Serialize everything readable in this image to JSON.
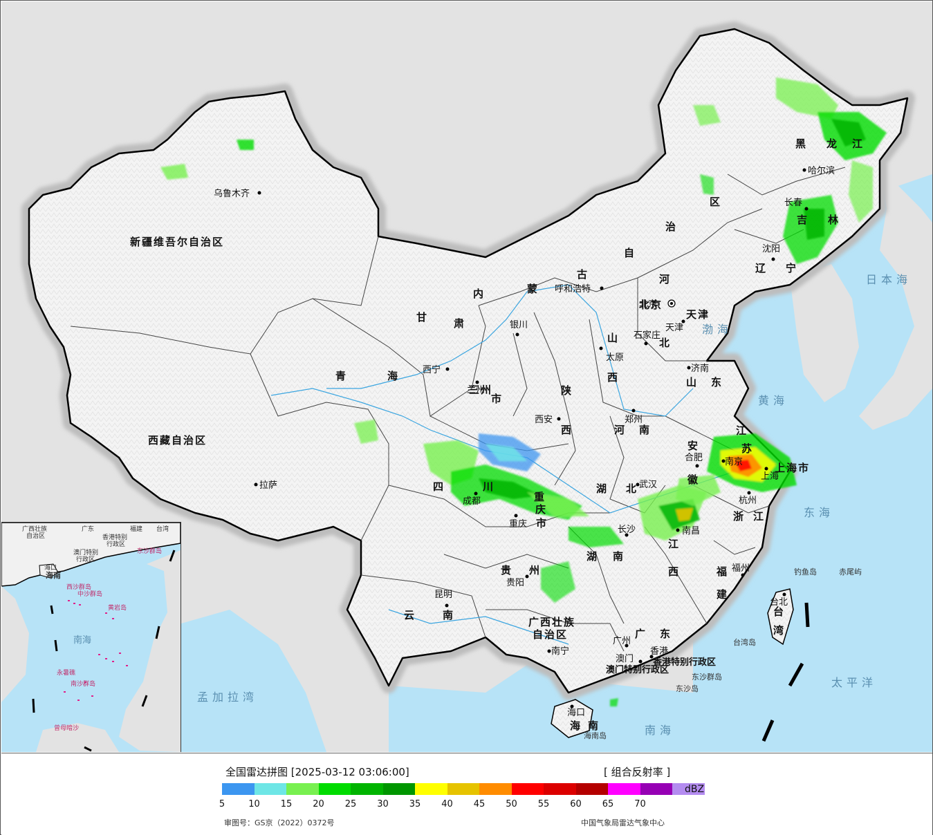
{
  "title": "全国雷达拼图 [2025-03-12 03:06:00]",
  "product": "[ 组合反射率 ]",
  "unit": "dBZ",
  "review_number": "审图号：GS京（2022）0372号",
  "source": "中国气象局雷达气象中心",
  "legend": {
    "colors": [
      "#3c96f0",
      "#6ee6e6",
      "#78f050",
      "#00dc00",
      "#00b400",
      "#009600",
      "#ffff00",
      "#e6c300",
      "#ff8c00",
      "#ff0000",
      "#dc0000",
      "#b40000",
      "#ff00ff",
      "#9600b4",
      "#b48cf0"
    ],
    "ticks": [
      "5",
      "10",
      "15",
      "20",
      "25",
      "30",
      "35",
      "40",
      "45",
      "50",
      "55",
      "60",
      "65",
      "70"
    ]
  },
  "provinces": [
    {
      "name": "新疆维吾尔自治区"
    },
    {
      "name": "西藏自治区"
    },
    {
      "name": "青"
    },
    {
      "name": "海"
    },
    {
      "name": "甘"
    },
    {
      "name": "肃"
    },
    {
      "name": "内"
    },
    {
      "name": "蒙"
    },
    {
      "name": "古"
    },
    {
      "name": "自"
    },
    {
      "name": "治"
    },
    {
      "name": "区"
    },
    {
      "name": "黑"
    },
    {
      "name": "龙"
    },
    {
      "name": "江"
    },
    {
      "name": "吉"
    },
    {
      "name": "林"
    },
    {
      "name": "辽"
    },
    {
      "name": "宁"
    },
    {
      "name": "河"
    },
    {
      "name": "北"
    },
    {
      "name": "山"
    },
    {
      "name": "西"
    },
    {
      "name": "山"
    },
    {
      "name": "东"
    },
    {
      "name": "陕"
    },
    {
      "name": "西"
    },
    {
      "name": "河"
    },
    {
      "name": "南"
    },
    {
      "name": "四"
    },
    {
      "name": "川"
    },
    {
      "name": "湖"
    },
    {
      "name": "北"
    },
    {
      "name": "安"
    },
    {
      "name": "徽"
    },
    {
      "name": "江"
    },
    {
      "name": "苏"
    },
    {
      "name": "浙"
    },
    {
      "name": "江"
    },
    {
      "name": "贵"
    },
    {
      "name": "州"
    },
    {
      "name": "云"
    },
    {
      "name": "南"
    },
    {
      "name": "湖"
    },
    {
      "name": "南"
    },
    {
      "name": "江"
    },
    {
      "name": "西"
    },
    {
      "name": "福"
    },
    {
      "name": "建"
    },
    {
      "name": "广西壮族"
    },
    {
      "name": "自治区"
    },
    {
      "name": "广"
    },
    {
      "name": "东"
    },
    {
      "name": "海"
    },
    {
      "name": "南"
    },
    {
      "name": "台"
    },
    {
      "name": "湾"
    },
    {
      "name": "上海市"
    },
    {
      "name": "北京"
    },
    {
      "name": "天津"
    },
    {
      "name": "重"
    },
    {
      "name": "庆"
    },
    {
      "name": "市"
    },
    {
      "name": "三州"
    },
    {
      "name": "市"
    }
  ],
  "cities": [
    {
      "name": "乌鲁木齐"
    },
    {
      "name": "拉萨"
    },
    {
      "name": "西宁"
    },
    {
      "name": "兰州"
    },
    {
      "name": "银川"
    },
    {
      "name": "呼和浩特"
    },
    {
      "name": "北京"
    },
    {
      "name": "天津"
    },
    {
      "name": "石家庄"
    },
    {
      "name": "太原"
    },
    {
      "name": "济南"
    },
    {
      "name": "郑州"
    },
    {
      "name": "西安"
    },
    {
      "name": "成都"
    },
    {
      "name": "重庆"
    },
    {
      "name": "武汉"
    },
    {
      "name": "合肥"
    },
    {
      "name": "南京"
    },
    {
      "name": "上海"
    },
    {
      "name": "杭州"
    },
    {
      "name": "南昌"
    },
    {
      "name": "长沙"
    },
    {
      "name": "贵阳"
    },
    {
      "name": "昆明"
    },
    {
      "name": "南宁"
    },
    {
      "name": "广州"
    },
    {
      "name": "澳门"
    },
    {
      "name": "香港"
    },
    {
      "name": "福州"
    },
    {
      "name": "台北"
    },
    {
      "name": "海口"
    },
    {
      "name": "哈尔滨"
    },
    {
      "name": "长春"
    },
    {
      "name": "沈阳"
    }
  ],
  "seas": [
    {
      "name": "日本海"
    },
    {
      "name": "渤海"
    },
    {
      "name": "黄海"
    },
    {
      "name": "东海"
    },
    {
      "name": "太平洋"
    },
    {
      "name": "南海"
    },
    {
      "name": "孟加拉湾"
    }
  ],
  "islands": [
    {
      "name": "钓鱼岛"
    },
    {
      "name": "赤尾屿"
    },
    {
      "name": "台湾岛"
    },
    {
      "name": "东沙群岛"
    },
    {
      "name": "东沙岛"
    },
    {
      "name": "海南岛"
    },
    {
      "name": "香港特别行政区"
    },
    {
      "name": "澳门特别行政区"
    }
  ],
  "inset": {
    "labels": [
      "广西壮族",
      "自治区",
      "广东",
      "福建",
      "台湾",
      "香港特别",
      "行政区",
      "澳门特别",
      "行政区",
      "东沙群岛",
      "海口",
      "海南",
      "西沙群岛",
      "中沙群岛",
      "黄岩岛",
      "南海",
      "永暑礁",
      "南沙群岛",
      "曾母暗沙"
    ]
  }
}
